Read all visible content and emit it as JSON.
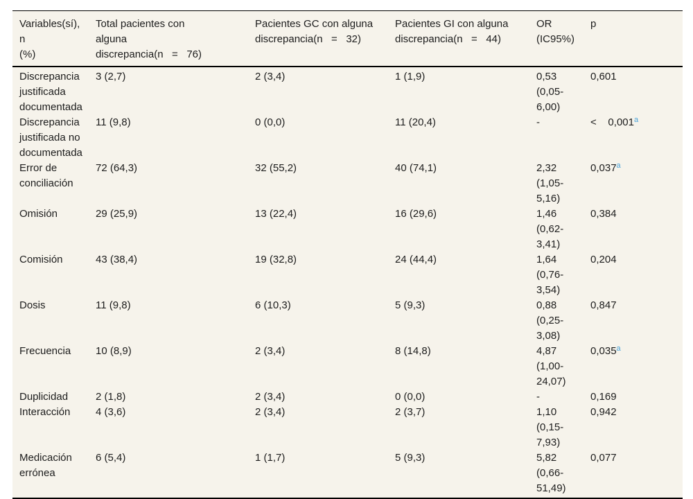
{
  "table": {
    "columns": [
      "Variables(sí), n\n(%)",
      "Total pacientes con\nalguna\ndiscrepancia(n   =   76)",
      "Pacientes GC con alguna\ndiscrepancia(n   =   32)",
      "Pacientes GI con alguna\ndiscrepancia(n   =   44)",
      "OR\n(IC95%)",
      "p"
    ],
    "rows": [
      {
        "variable": "Discrepancia\njustificada\ndocumentada",
        "total": "3 (2,7)",
        "gc": "2 (3,4)",
        "gi": "1 (1,9)",
        "or": "0,53\n(0,05-\n6,00)",
        "p": "0,601",
        "p_sup": ""
      },
      {
        "variable": "Discrepancia\njustificada no\ndocumentada",
        "total": "11 (9,8)",
        "gc": "0 (0,0)",
        "gi": "11 (20,4)",
        "or": "-",
        "p": "<    0,001",
        "p_sup": "a"
      },
      {
        "variable": "Error de\nconciliación",
        "total": "72 (64,3)",
        "gc": "32 (55,2)",
        "gi": "40 (74,1)",
        "or": "2,32\n(1,05-\n5,16)",
        "p": "0,037",
        "p_sup": "a"
      },
      {
        "variable": "Omisión",
        "total": "29 (25,9)",
        "gc": "13 (22,4)",
        "gi": "16 (29,6)",
        "or": "1,46\n(0,62-\n3,41)",
        "p": "0,384",
        "p_sup": ""
      },
      {
        "variable": "Comisión",
        "total": "43 (38,4)",
        "gc": "19 (32,8)",
        "gi": "24 (44,4)",
        "or": "1,64\n(0,76-\n3,54)",
        "p": "0,204",
        "p_sup": ""
      },
      {
        "variable": "Dosis",
        "total": "11 (9,8)",
        "gc": "6 (10,3)",
        "gi": "5 (9,3)",
        "or": "0,88\n(0,25-\n3,08)",
        "p": "0,847",
        "p_sup": ""
      },
      {
        "variable": "Frecuencia",
        "total": "10 (8,9)",
        "gc": "2 (3,4)",
        "gi": "8 (14,8)",
        "or": "4,87\n(1,00-\n24,07)",
        "p": "0,035",
        "p_sup": "a"
      },
      {
        "variable": "Duplicidad",
        "total": "2 (1,8)",
        "gc": "2 (3,4)",
        "gi": "0 (0,0)",
        "or": "-",
        "p": "0,169",
        "p_sup": ""
      },
      {
        "variable": "Interacción",
        "total": "4 (3,6)",
        "gc": "2 (3,4)",
        "gi": "2 (3,7)",
        "or": "1,10\n(0,15-\n7,93)",
        "p": "0,942",
        "p_sup": ""
      },
      {
        "variable": "Medicación\nerrónea",
        "total": "6 (5,4)",
        "gc": "1 (1,7)",
        "gi": "5 (9,3)",
        "or": "5,82\n(0,66-\n51,49)",
        "p": "0,077",
        "p_sup": ""
      }
    ],
    "colors": {
      "table_background": "#f6f3eb",
      "text": "#1c1c1c",
      "border": "#000000",
      "footnote_marker": "#4ba3d9"
    }
  }
}
